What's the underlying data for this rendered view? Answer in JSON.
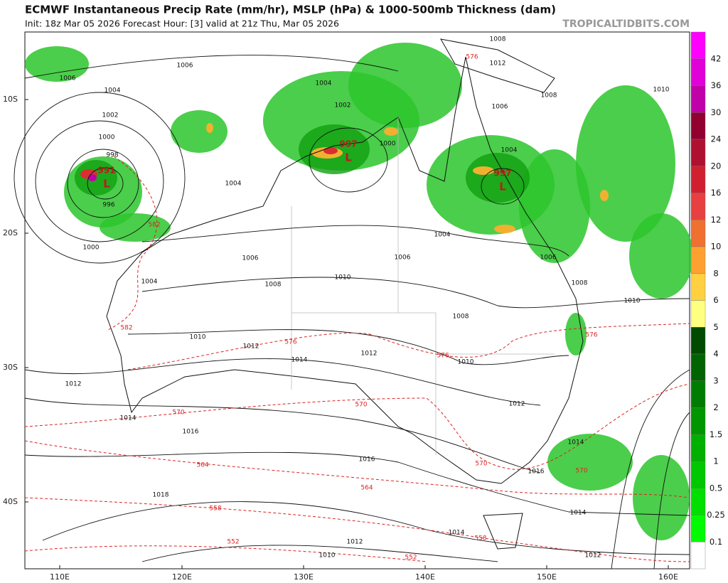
{
  "header": {
    "title": "ECMWF Instantaneous Precip Rate (mm/hr), MSLP (hPa) & 1000-500mb Thickness (dam)",
    "subtitle": "Init: 18z Mar 05 2026   Forecast Hour: [3]   valid at 21z Thu, Mar 05 2026",
    "source": "TROPICALTIDBITS.COM"
  },
  "map": {
    "lat_labels": [
      "10S",
      "20S",
      "30S",
      "40S"
    ],
    "lon_labels": [
      "110E",
      "120E",
      "130E",
      "140E",
      "150E",
      "160E"
    ],
    "lows": [
      {
        "pressure": 991,
        "symbol": "L"
      },
      {
        "pressure": 997,
        "symbol": "L"
      },
      {
        "pressure": 997,
        "symbol": "L"
      }
    ],
    "isobar_labels": [
      1006,
      1004,
      1002,
      1000,
      998,
      996,
      1000,
      1006,
      1004,
      1004,
      1004,
      1002,
      1000,
      1004,
      1006,
      1006,
      1008,
      1010,
      1008,
      1010,
      1012,
      1014,
      1012,
      1010,
      1012,
      1014,
      1016,
      1016,
      1012,
      1016,
      1014,
      1018,
      1014,
      1012,
      1010,
      1014,
      1012,
      1008,
      1012,
      1008,
      1006,
      1004,
      1006,
      1008,
      1010,
      1010
    ],
    "thickness_labels": [
      576,
      582,
      582,
      576,
      576,
      576,
      570,
      570,
      570,
      570,
      564,
      564,
      558,
      558,
      552,
      552
    ]
  },
  "colorbar": {
    "labels": [
      42,
      36,
      30,
      24,
      20,
      16,
      12,
      10,
      8,
      6,
      5,
      4,
      3,
      2,
      1.5,
      1,
      0.5,
      0.25,
      0.1
    ],
    "colors": [
      "#ff00ff",
      "#e000d8",
      "#c000a8",
      "#920030",
      "#b01030",
      "#d02030",
      "#e84040",
      "#f07030",
      "#ffa030",
      "#ffd040",
      "#ffff80",
      "#004b00",
      "#006400",
      "#007d00",
      "#009600",
      "#00b000",
      "#00c800",
      "#00e000",
      "#00fa00",
      "#ffffff"
    ]
  }
}
